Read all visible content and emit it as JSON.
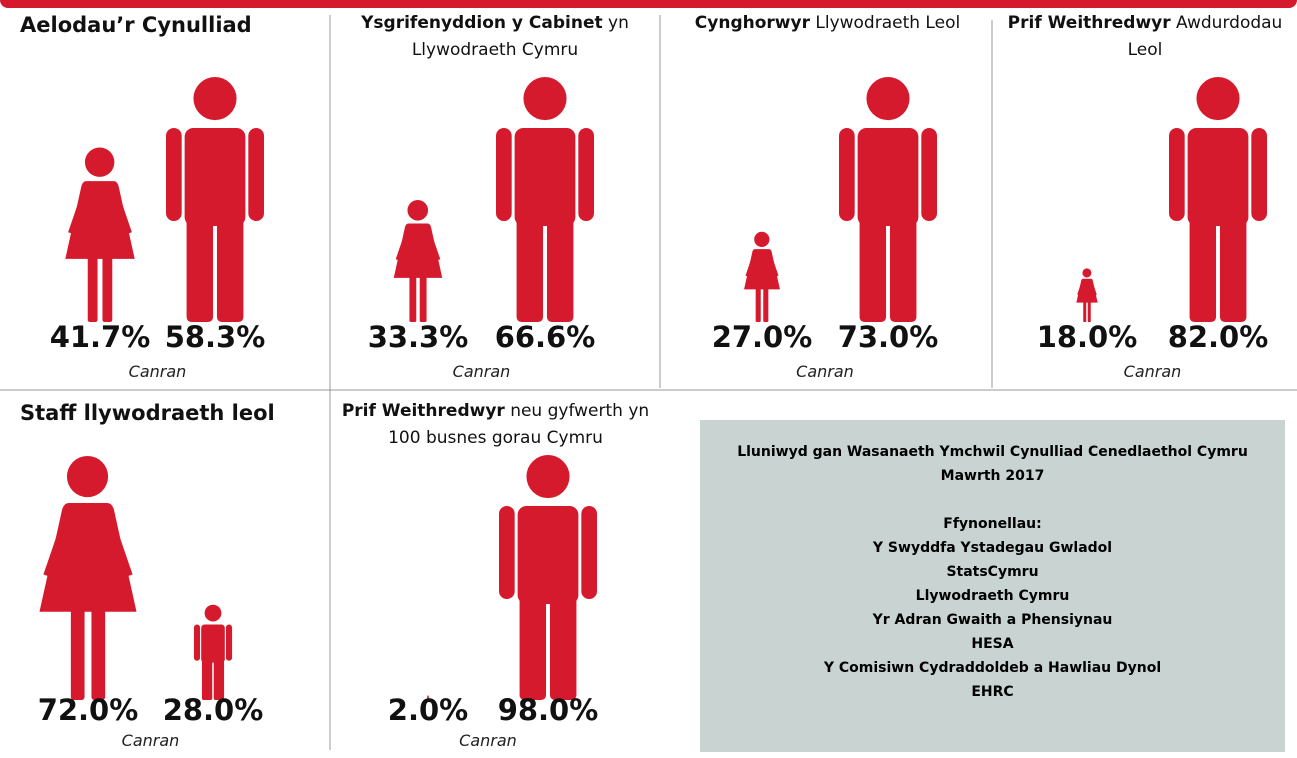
{
  "chart_data": [
    {
      "type": "pictogram",
      "title": "Aelodau’r Cynulliad",
      "values": [
        41.7,
        58.3
      ],
      "value_labels": [
        "41.7%",
        "58.3%"
      ],
      "icons": [
        "female",
        "male"
      ],
      "axis_label": "Canran",
      "color": "#d61a2d"
    },
    {
      "type": "pictogram",
      "title": "Ysgrifenyddion y Cabinet",
      "subtitle": "yn Llywodraeth Cymru",
      "values": [
        33.3,
        66.6
      ],
      "value_labels": [
        "33.3%",
        "66.6%"
      ],
      "icons": [
        "female",
        "male"
      ],
      "axis_label": "Canran",
      "color": "#d61a2d"
    },
    {
      "type": "pictogram",
      "title": "Cynghorwyr",
      "subtitle": "Llywodraeth Leol",
      "values": [
        27.0,
        73.0
      ],
      "value_labels": [
        "27.0%",
        "73.0%"
      ],
      "icons": [
        "female",
        "male"
      ],
      "axis_label": "Canran",
      "color": "#d61a2d"
    },
    {
      "type": "pictogram",
      "title": "Prif Weithredwyr",
      "subtitle": "Awdurdodau Leol",
      "values": [
        18.0,
        82.0
      ],
      "value_labels": [
        "18.0%",
        "82.0%"
      ],
      "icons": [
        "female",
        "male"
      ],
      "axis_label": "Canran",
      "color": "#d61a2d"
    },
    {
      "type": "pictogram",
      "title": "Staff llywodraeth leol",
      "values": [
        72.0,
        28.0
      ],
      "value_labels": [
        "72.0%",
        "28.0%"
      ],
      "icons": [
        "female",
        "male"
      ],
      "axis_label": "Canran",
      "color": "#d61a2d"
    },
    {
      "type": "pictogram",
      "title": "Prif Weithredwyr",
      "subtitle": "neu gyfwerth yn 100 busnes gorau Cymru",
      "values": [
        2.0,
        98.0
      ],
      "value_labels": [
        "2.0%",
        "98.0%"
      ],
      "icons": [
        "female",
        "male"
      ],
      "axis_label": "Canran",
      "color": "#d61a2d"
    }
  ],
  "info_box": {
    "lines": [
      "Lluniwyd gan Wasanaeth Ymchwil Cynulliad Cenedlaethol Cymru",
      "Mawrth 2017",
      "",
      "Ffynonellau:",
      "Y Swyddfa Ystadegau Gwladol",
      "StatsCymru",
      "Llywodraeth Cymru",
      "Yr Adran Gwaith a Phensiynau",
      "HESA",
      "Y Comisiwn Cydraddoldeb a Hawliau Dynol",
      "EHRC"
    ]
  }
}
